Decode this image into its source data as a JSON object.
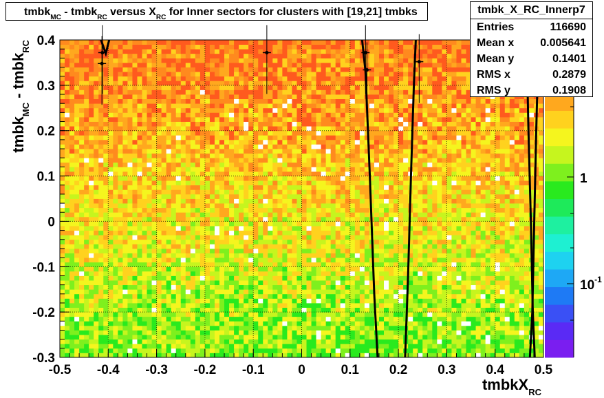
{
  "title": {
    "parts": [
      {
        "t": "tmbk",
        "sub": "MC"
      },
      {
        "t": " - tmbk",
        "sub": "RC"
      },
      {
        "t": " versus X",
        "sub": "RC"
      },
      {
        "t": " for Inner sectors for clusters with [19,21] tmbks",
        "sub": ""
      }
    ]
  },
  "stats": {
    "name": "tmbk_X_RC_Innerp7",
    "rows": [
      {
        "label": "Entries",
        "value": "116690"
      },
      {
        "label": "Mean x",
        "value": "0.005641"
      },
      {
        "label": "Mean y",
        "value": "0.1401"
      },
      {
        "label": "RMS x",
        "value": "0.2879"
      },
      {
        "label": "RMS y",
        "value": "0.1908"
      }
    ]
  },
  "colorbar": {
    "labels": [
      {
        "text": "1",
        "exp": ""
      },
      {
        "text": "10",
        "exp": "-1"
      }
    ]
  },
  "chart_data": {
    "type": "heatmap",
    "title": "tmbk_MC - tmbk_RC versus X_RC for Inner sectors for clusters with [19,21] tmbks",
    "xlabel": "tmbkX_RC",
    "ylabel": "tmbk_MC - tmbk_RC",
    "xlim": [
      -0.5,
      0.5
    ],
    "ylim": [
      -0.3,
      0.4
    ],
    "x_ticks": [
      "-0.5",
      "-0.4",
      "-0.3",
      "-0.2",
      "-0.1",
      "0",
      "0.1",
      "0.2",
      "0.3",
      "0.4",
      "0.5"
    ],
    "y_ticks": [
      "-0.3",
      "-0.2",
      "-0.1",
      "0",
      "0.1",
      "0.2",
      "0.3",
      "0.4"
    ],
    "z_scale": "log",
    "grid": true,
    "bins_x": 100,
    "bins_y": 70,
    "profile_points": [
      {
        "x": -0.412,
        "y": 0.372
      },
      {
        "x": -0.413,
        "y": 0.348
      },
      {
        "x": -0.072,
        "y": 0.372
      },
      {
        "x": 0.132,
        "y": 0.372
      },
      {
        "x": 0.135,
        "y": 0.334
      },
      {
        "x": 0.243,
        "y": 0.352
      }
    ],
    "fit_curves": [
      [
        [
          -0.415,
          0.4
        ],
        [
          -0.405,
          0.37
        ],
        [
          -0.398,
          0.4
        ]
      ],
      [
        [
          0.125,
          0.4
        ],
        [
          0.132,
          0.33
        ],
        [
          0.141,
          0.1
        ],
        [
          0.15,
          -0.16
        ],
        [
          0.157,
          -0.3
        ]
      ],
      [
        [
          0.236,
          0.4
        ],
        [
          0.232,
          0.3
        ],
        [
          0.226,
          0.1
        ],
        [
          0.22,
          -0.12
        ],
        [
          0.214,
          -0.3
        ]
      ],
      [
        [
          0.465,
          0.4
        ],
        [
          0.469,
          0.2
        ],
        [
          0.474,
          0.0
        ],
        [
          0.478,
          -0.2
        ],
        [
          0.482,
          -0.3
        ]
      ],
      [
        [
          0.49,
          0.4
        ],
        [
          0.485,
          0.2
        ],
        [
          0.481,
          0.0
        ],
        [
          0.477,
          -0.2
        ],
        [
          0.472,
          -0.3
        ]
      ]
    ]
  }
}
